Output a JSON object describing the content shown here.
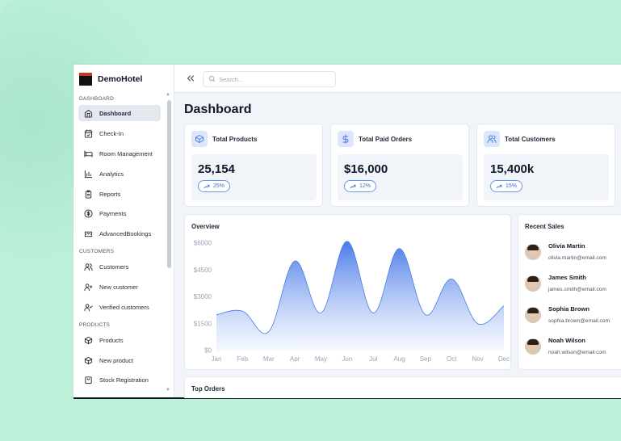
{
  "brand": {
    "name": "DemoHotel"
  },
  "sidebar": {
    "sections": [
      {
        "label": "DASHBOARD",
        "items": [
          {
            "label": "Dashboard",
            "icon": "home-icon",
            "active": true
          },
          {
            "label": "Check-In",
            "icon": "calendar-check-icon"
          },
          {
            "label": "Room Management",
            "icon": "bed-icon"
          },
          {
            "label": "Analytics",
            "icon": "bar-chart-icon"
          },
          {
            "label": "Reports",
            "icon": "clipboard-icon"
          },
          {
            "label": "Payments",
            "icon": "dollar-circle-icon"
          },
          {
            "label": "AdvancedBookings",
            "icon": "ticket-icon"
          }
        ]
      },
      {
        "label": "CUSTOMERS",
        "items": [
          {
            "label": "Customers",
            "icon": "users-icon"
          },
          {
            "label": "New customer",
            "icon": "user-plus-icon"
          },
          {
            "label": "Verified customers",
            "icon": "user-check-icon"
          }
        ]
      },
      {
        "label": "PRODUCTS",
        "items": [
          {
            "label": "Products",
            "icon": "box-icon"
          },
          {
            "label": "New product",
            "icon": "box-plus-icon"
          },
          {
            "label": "Stock Registration",
            "icon": "bag-icon"
          }
        ]
      }
    ]
  },
  "topbar": {
    "search_placeholder": "Search..."
  },
  "page": {
    "title": "Dashboard"
  },
  "stats": [
    {
      "title": "Total Products",
      "value": "25,154",
      "change": "25%",
      "icon": "box-icon"
    },
    {
      "title": "Total Paid Orders",
      "value": "$16,000",
      "change": "12%",
      "icon": "dollar-icon"
    },
    {
      "title": "Total Customers",
      "value": "15,400k",
      "change": "15%",
      "icon": "users-icon"
    }
  ],
  "overview": {
    "title": "Overview"
  },
  "recent_sales": {
    "title": "Recent Sales",
    "items": [
      {
        "name": "Olivia Martin",
        "email": "olivia.martin@email.com"
      },
      {
        "name": "James Smith",
        "email": "james.smith@email.com"
      },
      {
        "name": "Sophia Brown",
        "email": "sophia.brown@email.com"
      },
      {
        "name": "Noah Wilson",
        "email": "noah.wilson@email.com"
      }
    ]
  },
  "top_orders": {
    "title": "Top Orders"
  },
  "colors": {
    "accent": "#4a7be8",
    "accent_soft": "#dbe6fb"
  },
  "chart_data": {
    "type": "area",
    "categories": [
      "Jan",
      "Feb",
      "Mar",
      "Apr",
      "May",
      "Jun",
      "Jul",
      "Aug",
      "Sep",
      "Oct",
      "Nov",
      "Dec"
    ],
    "values": [
      2000,
      2200,
      1050,
      5000,
      2100,
      6100,
      2100,
      5700,
      2000,
      4000,
      1500,
      2500
    ],
    "ytick_labels": [
      "$0",
      "$1500",
      "$3000",
      "$4500",
      "$6000"
    ],
    "ytick_values": [
      0,
      1500,
      3000,
      4500,
      6000
    ],
    "ylim": [
      0,
      6000
    ],
    "grid": false
  }
}
